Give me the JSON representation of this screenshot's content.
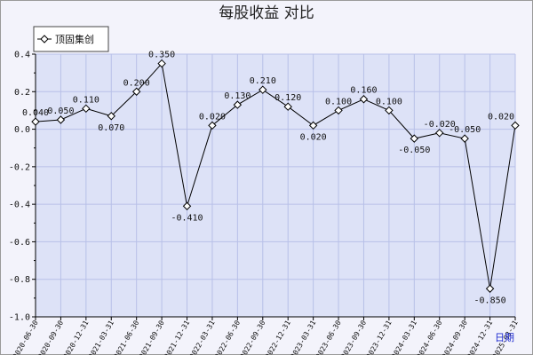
{
  "chart_data": {
    "type": "line",
    "title": "每股收益  对比",
    "xlabel": "日期",
    "ylabel": "",
    "ylim": [
      -1.0,
      0.4
    ],
    "yticks": [
      0.4,
      0.2,
      0.0,
      -0.2,
      -0.4,
      -0.6,
      -0.8,
      -1.0
    ],
    "y_tick_labels": [
      "0.4",
      "0.2",
      "0.0",
      "-0.2",
      "-0.4",
      "-0.6",
      "-0.8",
      "-1.0"
    ],
    "grid": true,
    "legend_position": "top-left",
    "categories": [
      "2020-06-30",
      "2020-09-30",
      "2020-12-31",
      "2021-03-31",
      "2021-06-30",
      "2021-09-30",
      "2021-12-31",
      "2022-03-31",
      "2022-06-30",
      "2022-09-30",
      "2022-12-31",
      "2023-03-31",
      "2023-06-30",
      "2023-09-30",
      "2023-12-31",
      "2024-03-31",
      "2024-06-30",
      "2024-09-30",
      "2024-12-31",
      "2025-03-31"
    ],
    "series": [
      {
        "name": "顶固集创",
        "color": "#000000",
        "values": [
          0.04,
          0.05,
          0.11,
          0.07,
          0.2,
          0.35,
          -0.41,
          0.02,
          0.13,
          0.21,
          0.12,
          0.02,
          0.1,
          0.16,
          0.1,
          -0.05,
          -0.02,
          -0.05,
          -0.85,
          0.02
        ],
        "value_labels": [
          "0.040",
          "0.050",
          "0.110",
          "0.070",
          "0.200",
          "0.350",
          "-0.410",
          "0.020",
          "0.130",
          "0.210",
          "0.120",
          "0.020",
          "0.100",
          "0.160",
          "0.100",
          "-0.050",
          "-0.020",
          "-0.050",
          "-0.850",
          "0.020"
        ]
      }
    ],
    "colors": {
      "plot_background": "#dde2f7",
      "grid": "#b8c0e8",
      "page_background": "#f3f3fb"
    }
  }
}
